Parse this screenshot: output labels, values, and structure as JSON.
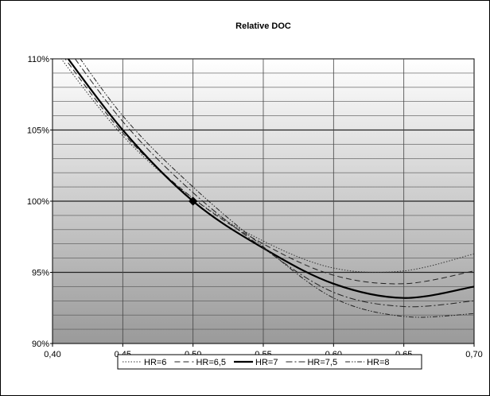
{
  "chart_data": {
    "type": "line",
    "title": "Relative DOC",
    "xlabel": "",
    "ylabel": "",
    "xlim": [
      0.4,
      0.7
    ],
    "ylim": [
      90,
      110
    ],
    "x_ticks": [
      "0,40",
      "0,45",
      "0,50",
      "0,55",
      "0,60",
      "0,65",
      "0,70"
    ],
    "x_tick_values": [
      0.4,
      0.45,
      0.5,
      0.55,
      0.6,
      0.65,
      0.7
    ],
    "y_ticks": [
      "90%",
      "95%",
      "100%",
      "105%",
      "110%"
    ],
    "y_tick_values": [
      90,
      95,
      100,
      105,
      110
    ],
    "y_minor_step": 1,
    "grid": true,
    "legend_position": "bottom",
    "background": "vertical gradient white to grey",
    "series": [
      {
        "name": "HR=6",
        "style": "dotted",
        "x": [
          0.4,
          0.45,
          0.5,
          0.55,
          0.6,
          0.65,
          0.7
        ],
        "y": [
          110.8,
          104.6,
          100.2,
          97.2,
          95.3,
          95.1,
          96.3
        ]
      },
      {
        "name": "HR=6,5",
        "style": "dashed",
        "x": [
          0.4,
          0.45,
          0.5,
          0.55,
          0.6,
          0.65,
          0.7
        ],
        "y": [
          111.2,
          104.8,
          100.2,
          97.0,
          94.8,
          94.2,
          95.1
        ]
      },
      {
        "name": "HR=7",
        "style": "solid-bold",
        "x": [
          0.4,
          0.45,
          0.5,
          0.55,
          0.6,
          0.65,
          0.7
        ],
        "y": [
          111.5,
          105.0,
          100.0,
          96.7,
          94.2,
          93.2,
          94.0
        ]
      },
      {
        "name": "HR=7,5",
        "style": "dash-dot",
        "x": [
          0.4,
          0.45,
          0.5,
          0.55,
          0.6,
          0.65,
          0.7
        ],
        "y": [
          112.2,
          105.6,
          100.6,
          96.7,
          93.6,
          92.6,
          93.0
        ]
      },
      {
        "name": "HR=8",
        "style": "dash-dot-dot",
        "x": [
          0.4,
          0.45,
          0.5,
          0.55,
          0.6,
          0.65,
          0.7
        ],
        "y": [
          112.8,
          106.0,
          101.0,
          96.8,
          93.2,
          91.9,
          92.1
        ]
      }
    ],
    "reference_point": {
      "x": 0.5,
      "y": 100
    }
  }
}
